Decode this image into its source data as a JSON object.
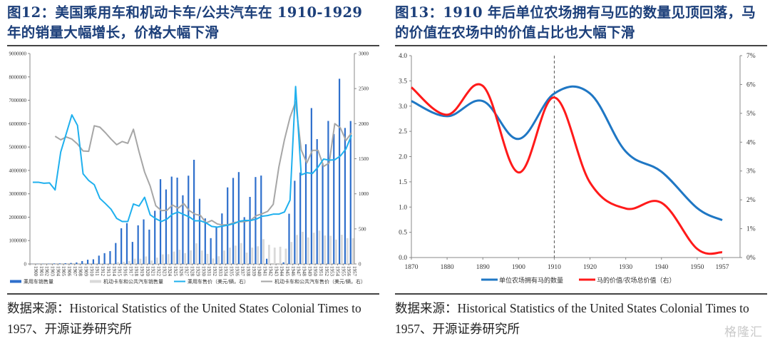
{
  "figures": [
    {
      "title": "图12：美国乘用车和机动卡车/公共汽车在 1910-1929 年的销量大幅增长，价格大幅下滑",
      "source": "数据来源：Historical Statistics of the United States Colonial Times to 1957、开源证券研究所"
    },
    {
      "title": "图13：1910 年后单位农场拥有马匹的数量见顶回落，马的价值在农场中的价值占比也大幅下滑",
      "source": "数据来源：Historical Statistics of the United States Colonial Times to 1957、开源证券研究所"
    }
  ],
  "watermark": "格隆汇",
  "colors": {
    "car_sales": "#2e6fcc",
    "truck_sales": "#d9d9d9",
    "car_price": "#1fb0ee",
    "truck_price": "#a6a6a6",
    "horses": "#1f77c4",
    "horse_value": "#ff1a1a",
    "title": "#1c3f7a"
  },
  "chart_data": [
    {
      "type": "bar+line",
      "title": "图12",
      "xlabel": "",
      "ylabel": "",
      "categories": [
        "1900",
        "1901",
        "1902",
        "1903",
        "1904",
        "1905",
        "1906",
        "1907",
        "1908",
        "1909",
        "1910",
        "1911",
        "1912",
        "1913",
        "1914",
        "1915",
        "1916",
        "1917",
        "1918",
        "1919",
        "1920",
        "1921",
        "1922",
        "1923",
        "1924",
        "1925",
        "1926",
        "1927",
        "1928",
        "1929",
        "1930",
        "1931",
        "1932",
        "1933",
        "1934",
        "1935",
        "1936",
        "1937",
        "1938",
        "1939",
        "1940",
        "1941",
        "1942",
        "1943",
        "1944",
        "1945",
        "1946",
        "1947",
        "1948",
        "1949",
        "1950",
        "1951",
        "1952",
        "1953",
        "1954",
        "1955",
        "1956",
        "1957"
      ],
      "y_left": {
        "lim": [
          0,
          9000000
        ],
        "ticks": [
          "0",
          "1000000",
          "2000000",
          "3000000",
          "4000000",
          "5000000",
          "6000000",
          "7000000",
          "8000000",
          "9000000"
        ]
      },
      "y_right": {
        "lim": [
          0,
          3000
        ],
        "ticks": [
          "0",
          "500",
          "1000",
          "1500",
          "2000",
          "2500",
          "3000"
        ]
      },
      "grid": false,
      "legend_position": "bottom",
      "series": [
        {
          "name": "乘用车销售量",
          "type": "bar",
          "axis": "left",
          "values": [
            4000,
            7000,
            9000,
            11000,
            22000,
            24000,
            33000,
            43000,
            64000,
            124000,
            181000,
            199000,
            356000,
            462000,
            548000,
            896000,
            1526000,
            1746000,
            943000,
            1652000,
            1906000,
            1468000,
            2274000,
            3625000,
            3186000,
            3735000,
            3692000,
            2937000,
            3775000,
            4455000,
            2787000,
            1948000,
            1104000,
            1561000,
            2161000,
            3274000,
            3679000,
            3929000,
            2001000,
            2867000,
            3717000,
            3780000,
            223000,
            100,
            600,
            70000,
            2149000,
            3558000,
            3909000,
            5119000,
            6666000,
            5338000,
            4321000,
            6117000,
            5559000,
            7920000,
            5816000,
            6113000
          ]
        },
        {
          "name": "机动卡车和公共汽车销售量",
          "type": "bar",
          "axis": "left",
          "values": [
            0,
            0,
            0,
            0,
            700,
            750,
            800,
            1000,
            1500,
            3000,
            6000,
            10000,
            23000,
            23000,
            25000,
            74000,
            92000,
            128000,
            227000,
            224000,
            322000,
            148000,
            270000,
            409000,
            417000,
            531000,
            608000,
            464000,
            583000,
            882000,
            575000,
            433000,
            235000,
            329000,
            576000,
            697000,
            784000,
            893000,
            488000,
            700000,
            755000,
            1060000,
            818000,
            699000,
            738000,
            656000,
            941000,
            1240000,
            1376000,
            1134000,
            1337000,
            1427000,
            1218000,
            1206000,
            1042000,
            1249000,
            1104000,
            1100000
          ]
        },
        {
          "name": "乘用车售价（美元/辆，右）",
          "type": "line",
          "axis": "right",
          "values": [
            1165,
            1165,
            1150,
            1155,
            1055,
            1595,
            1860,
            2125,
            1975,
            1285,
            1190,
            1130,
            935,
            860,
            780,
            650,
            605,
            605,
            855,
            825,
            950,
            700,
            645,
            605,
            640,
            710,
            740,
            705,
            670,
            615,
            615,
            585,
            535,
            525,
            540,
            555,
            575,
            610,
            620,
            620,
            640,
            680,
            690,
            710,
            710,
            740,
            910,
            2530,
            1270,
            1300,
            1290,
            1380,
            1495,
            1480,
            1485,
            1540,
            1640,
            1835
          ]
        },
        {
          "name": "机动卡车和公共汽车售价（美元/辆，右）",
          "type": "line",
          "axis": "right",
          "values": [
            null,
            null,
            null,
            null,
            1820,
            1770,
            1810,
            1780,
            1710,
            1610,
            1605,
            1970,
            1950,
            1870,
            1780,
            1700,
            1745,
            1720,
            1920,
            1600,
            1310,
            1110,
            830,
            760,
            765,
            840,
            795,
            860,
            760,
            710,
            690,
            585,
            620,
            570,
            555,
            560,
            590,
            600,
            605,
            625,
            690,
            715,
            750,
            850,
            1380,
            1770,
            2090,
            2310,
            1625,
            1440,
            1620,
            1620,
            1390,
            1440,
            2000,
            1940,
            1760,
            1870
          ]
        }
      ]
    },
    {
      "type": "line",
      "title": "图13",
      "xlabel": "",
      "ylabel": "",
      "x_ticks": [
        "1870",
        "1880",
        "1890",
        "1900",
        "1910",
        "1920",
        "1930",
        "1940",
        "1950",
        "1957"
      ],
      "y_left": {
        "lim": [
          0,
          4.0
        ],
        "ticks": [
          "0.0",
          "0.5",
          "1.0",
          "1.5",
          "2.0",
          "2.5",
          "3.0",
          "3.5",
          "4.0"
        ]
      },
      "y_right": {
        "lim": [
          0,
          7
        ],
        "ticks": [
          "0%",
          "1%",
          "2%",
          "3%",
          "4%",
          "5%",
          "6%",
          "7%"
        ]
      },
      "grid": false,
      "annotations": [
        {
          "type": "vertical-dashed-line",
          "x": 1910
        }
      ],
      "legend_position": "bottom",
      "series": [
        {
          "name": "单位农场拥有马的数量",
          "axis": "left",
          "x": [
            1870,
            1880,
            1890,
            1900,
            1910,
            1920,
            1930,
            1940,
            1950,
            1957
          ],
          "values": [
            3.1,
            2.8,
            3.1,
            2.35,
            3.25,
            3.25,
            2.1,
            1.7,
            0.98,
            0.74
          ]
        },
        {
          "name": "马的价值/农场总价值（右）",
          "axis": "right",
          "x": [
            1870,
            1880,
            1890,
            1900,
            1910,
            1920,
            1930,
            1940,
            1950,
            1957
          ],
          "values": [
            5.9,
            4.95,
            5.95,
            2.95,
            5.55,
            2.6,
            1.7,
            1.9,
            0.3,
            0.18
          ]
        }
      ]
    }
  ]
}
